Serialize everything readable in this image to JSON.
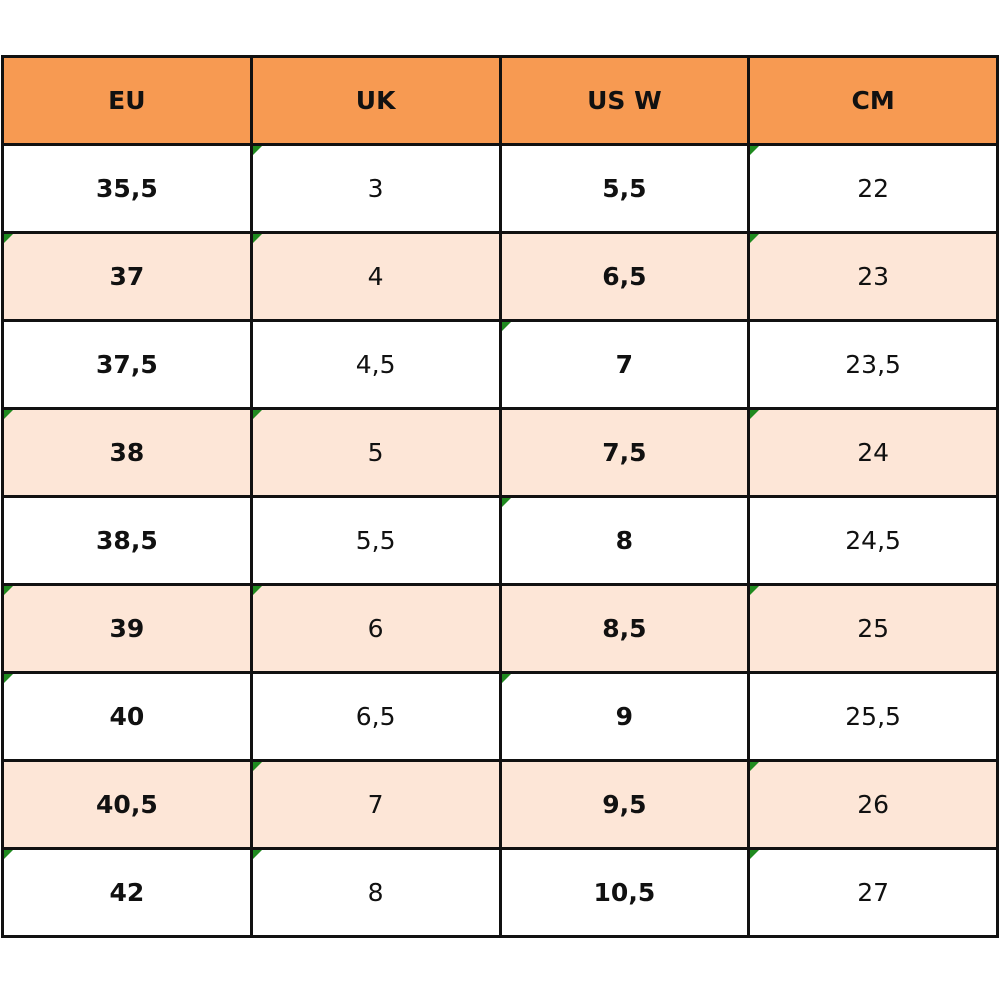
{
  "table": {
    "header": [
      "EU",
      "UK",
      "US W",
      "CM"
    ],
    "rows": [
      [
        "35,5",
        "3",
        "5,5",
        "22"
      ],
      [
        "37",
        "4",
        "6,5",
        "23"
      ],
      [
        "37,5",
        "4,5",
        "7",
        "23,5"
      ],
      [
        "38",
        "5",
        "7,5",
        "24"
      ],
      [
        "38,5",
        "5,5",
        "8",
        "24,5"
      ],
      [
        "39",
        "6",
        "8,5",
        "25"
      ],
      [
        "40",
        "6,5",
        "9",
        "25,5"
      ],
      [
        "40,5",
        "7",
        "9,5",
        "26"
      ],
      [
        "42",
        "8",
        "10,5",
        "27"
      ]
    ]
  }
}
